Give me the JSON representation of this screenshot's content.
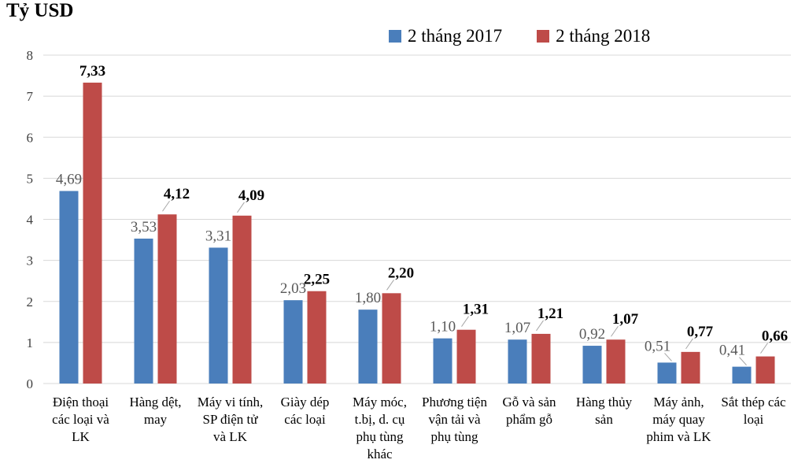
{
  "title": "Tỷ USD",
  "legend": [
    {
      "label": "2 tháng 2017",
      "color": "#4A7EBB"
    },
    {
      "label": "2 tháng 2018",
      "color": "#BE4B48"
    }
  ],
  "colors": {
    "grid": "#D8D8D8",
    "leader": "#A6A6A6",
    "series_2017": "#4A7EBB",
    "series_2018": "#BE4B48",
    "label_2017": "#595959",
    "label_2018": "#000000"
  },
  "chart_data": {
    "type": "bar",
    "title": "Tỷ USD",
    "xlabel": "",
    "ylabel": "Tỷ USD",
    "ylim": [
      0,
      8
    ],
    "yticks": [
      0,
      1,
      2,
      3,
      4,
      5,
      6,
      7,
      8
    ],
    "grid": true,
    "legend_position": "top-center",
    "categories": [
      "Điện thoại các loại và LK",
      "Hàng dệt, may",
      "Máy vi tính, SP điện tử và LK",
      "Giày dép các loại",
      "Máy móc, t.bị, d. cụ phụ tùng khác",
      "Phương tiện vận tải và phụ tùng",
      "Gỗ và sản phẩm gỗ",
      "Hàng thủy sản",
      "Máy ảnh, máy quay phim và LK",
      "Sắt thép các loại"
    ],
    "category_lines": [
      [
        "Điện thoại",
        "các loại và",
        "LK"
      ],
      [
        "Hàng dệt,",
        "may"
      ],
      [
        "Máy vi tính,",
        "SP điện tử",
        "và LK"
      ],
      [
        "Giày dép",
        "các loại"
      ],
      [
        "Máy móc,",
        "t.bị, d. cụ",
        "phụ tùng",
        "khác"
      ],
      [
        "Phương tiện",
        "vận tải và",
        "phụ tùng"
      ],
      [
        "Gỗ và sản",
        "phẩm gỗ"
      ],
      [
        "Hàng thủy",
        "sản"
      ],
      [
        "Máy ảnh,",
        "máy quay",
        "phim và LK"
      ],
      [
        "Sắt thép các",
        "loại"
      ]
    ],
    "series": [
      {
        "name": "2 tháng 2017",
        "color": "#4A7EBB",
        "values": [
          4.69,
          3.53,
          3.31,
          2.03,
          1.8,
          1.1,
          1.07,
          0.92,
          0.51,
          0.41
        ],
        "labels": [
          "4,69",
          "3,53",
          "3,31",
          "2,03",
          "1,80",
          "1,10",
          "1,07",
          "0,92",
          "0,51",
          "0,41"
        ],
        "leader_indices": [
          8,
          9
        ],
        "leader_side": "left"
      },
      {
        "name": "2 tháng 2018",
        "color": "#BE4B48",
        "values": [
          7.33,
          4.12,
          4.09,
          2.25,
          2.2,
          1.31,
          1.21,
          1.07,
          0.77,
          0.66
        ],
        "labels": [
          "7,33",
          "4,12",
          "4,09",
          "2,25",
          "2,20",
          "1,31",
          "1,21",
          "1,07",
          "0,77",
          "0,66"
        ],
        "leader_indices": [
          1,
          2,
          4,
          5,
          6,
          7,
          8,
          9
        ],
        "leader_side": "right"
      }
    ]
  }
}
